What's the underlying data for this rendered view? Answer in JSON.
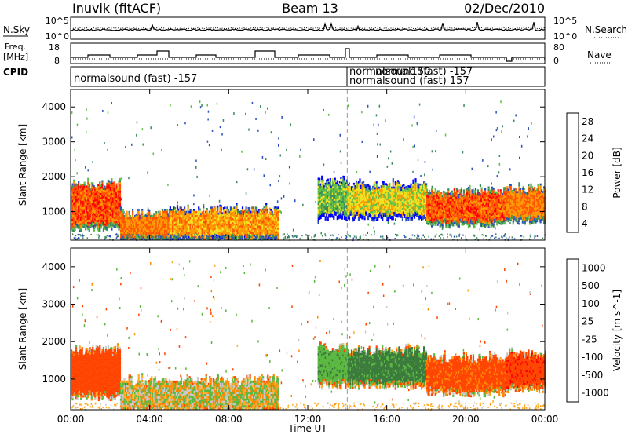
{
  "header": {
    "station": "Inuvik (fitACF)",
    "beam": "Beam 13",
    "date": "02/Dec/2010"
  },
  "strip_nsky": {
    "left_label": "N.Sky",
    "right_label": "N.Search",
    "left_ticks": [
      "10^5",
      "10^0"
    ],
    "right_ticks": [
      "10^5",
      "10^0"
    ]
  },
  "strip_freq": {
    "left_label_line1": "Freq.",
    "left_label_line2": "[MHz]",
    "right_label": "Nave",
    "left_ticks": [
      "18",
      "8"
    ],
    "right_ticks": [
      "80",
      "0"
    ]
  },
  "strip_cpid": {
    "label": "CPID",
    "entries": [
      {
        "text": "normalsound (fast) -157",
        "start_hour": 0.0
      },
      {
        "text": "normalsound (fast) -157",
        "start_hour": 14.0
      },
      {
        "text": "normalsound (fast) 157",
        "start_hour": 14.0
      },
      {
        "text": "normal150",
        "start_hour": 14.0
      }
    ]
  },
  "colors": {
    "power_scale": [
      "#0000ff",
      "#2a4fbf",
      "#3c8c5a",
      "#5fbf46",
      "#f0e020",
      "#ff9900",
      "#ff5500",
      "#ff0000"
    ],
    "velocity_scale": [
      "#2233cc",
      "#3a7a3a",
      "#5ab840",
      "#c8c8c8",
      "#ffaa22",
      "#ff8800",
      "#ff4400",
      "#ff0000"
    ]
  },
  "chart_data": [
    {
      "type": "heatmap",
      "title": "Power",
      "xlabel": "Time UT",
      "ylabel": "Slant Range [km]",
      "x_ticks": [
        "00:00",
        "04:00",
        "08:00",
        "12:00",
        "16:00",
        "20:00",
        "00:00"
      ],
      "xlim": [
        0,
        24
      ],
      "ylim": [
        180,
        4500
      ],
      "y_ticks": [
        1000,
        2000,
        3000,
        4000
      ],
      "colorbar_label": "Power [dB]",
      "colorbar_ticks": [
        "28",
        "24",
        "20",
        "16",
        "12",
        "8",
        "4"
      ],
      "colorbar_range": [
        0,
        32
      ],
      "echo_bands": [
        {
          "t0": 0.0,
          "t1": 2.5,
          "r0": 600,
          "r1": 1700,
          "value": 26
        },
        {
          "t0": 2.5,
          "t1": 5.0,
          "r0": 250,
          "r1": 900,
          "value": 24
        },
        {
          "t0": 5.0,
          "t1": 10.5,
          "r0": 250,
          "r1": 1000,
          "value": 22
        },
        {
          "t0": 12.5,
          "t1": 14.0,
          "r0": 900,
          "r1": 1800,
          "value": 14
        },
        {
          "t0": 14.0,
          "t1": 18.0,
          "r0": 900,
          "r1": 1700,
          "value": 18
        },
        {
          "t0": 18.0,
          "t1": 22.0,
          "r0": 700,
          "r1": 1500,
          "value": 26
        },
        {
          "t0": 22.0,
          "t1": 24.0,
          "r0": 800,
          "r1": 1600,
          "value": 24
        }
      ]
    },
    {
      "type": "heatmap",
      "title": "Velocity",
      "xlabel": "Time UT",
      "ylabel": "Slant Range [km]",
      "x_ticks": [
        "00:00",
        "04:00",
        "08:00",
        "12:00",
        "16:00",
        "20:00",
        "00:00"
      ],
      "xlim": [
        0,
        24
      ],
      "ylim": [
        180,
        4500
      ],
      "y_ticks": [
        1000,
        2000,
        3000,
        4000
      ],
      "colorbar_label": "Velocity [m s^-1]",
      "colorbar_ticks": [
        "1000",
        "500",
        "100",
        "25",
        "-25",
        "-100",
        "-500",
        "-1000"
      ],
      "echo_bands": [
        {
          "t0": 0.0,
          "t1": 2.5,
          "r0": 600,
          "r1": 1700,
          "value": -300
        },
        {
          "t0": 2.5,
          "t1": 10.5,
          "r0": 250,
          "r1": 900,
          "value": 50
        },
        {
          "t0": 12.5,
          "t1": 14.0,
          "r0": 900,
          "r1": 1800,
          "value": 400
        },
        {
          "t0": 14.0,
          "t1": 18.0,
          "r0": 900,
          "r1": 1700,
          "value": 600
        },
        {
          "t0": 18.0,
          "t1": 22.0,
          "r0": 700,
          "r1": 1500,
          "value": -200
        },
        {
          "t0": 22.0,
          "t1": 24.0,
          "r0": 800,
          "r1": 1600,
          "value": -400
        }
      ]
    }
  ]
}
